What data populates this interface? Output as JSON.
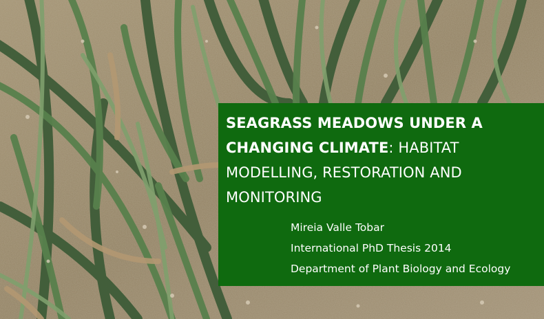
{
  "background": {
    "description_icon": "seagrass-photo",
    "colors": {
      "sand": "#9c8b6c",
      "sand_light": "#b8a888",
      "grass_dark": "#3c5a36",
      "grass_mid": "#557a4a",
      "grass_light": "#7c9a6c",
      "dry_leaf": "#b49a72"
    }
  },
  "panel": {
    "color": "#0f6a0f",
    "title_bold": "SEAGRASS MEADOWS UNDER A CHANGING CLIMATE",
    "title_rest": ": HABITAT MODELLING, RESTORATION AND MONITORING",
    "author": "Mireia Valle Tobar",
    "thesis": "International PhD Thesis 2014",
    "department": "Department of Plant Biology and Ecology"
  }
}
